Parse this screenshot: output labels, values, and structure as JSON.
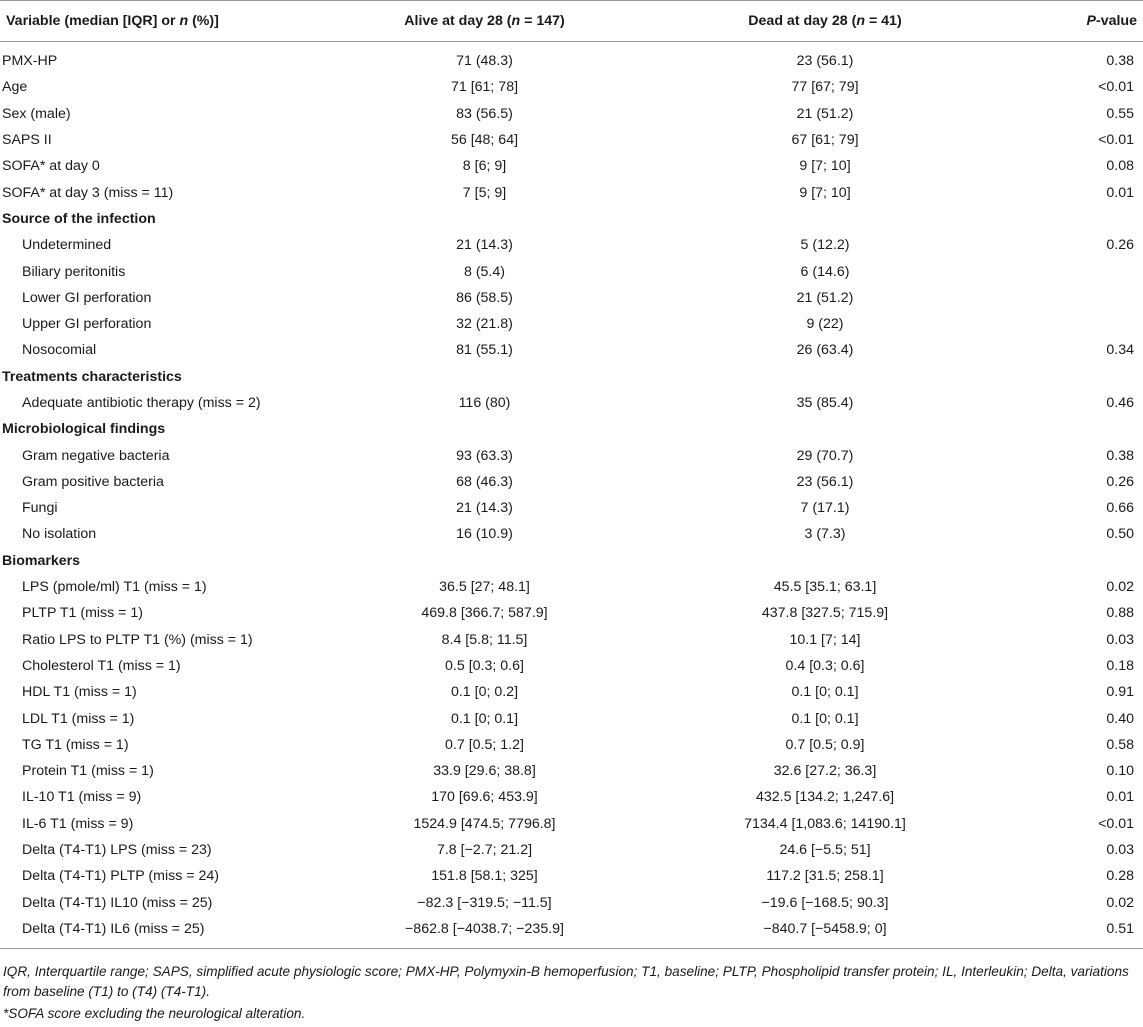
{
  "header": {
    "variable_prefix": "Variable (median [IQR] or ",
    "variable_n": "n",
    "variable_suffix": " (%)]",
    "alive_prefix": "Alive at day 28 (",
    "alive_n": "n",
    "alive_suffix": " = 147)",
    "dead_prefix": "Dead at day 28 (",
    "dead_n": "n",
    "dead_suffix": " = 41)",
    "p_prefix": "P",
    "p_suffix": "-value"
  },
  "rows": [
    {
      "label": "PMX-HP",
      "alive": "71 (48.3)",
      "dead": "23 (56.1)",
      "p": "0.38"
    },
    {
      "label": "Age",
      "alive": "71 [61; 78]",
      "dead": "77 [67; 79]",
      "p": "<0.01"
    },
    {
      "label": "Sex (male)",
      "alive": "83 (56.5)",
      "dead": "21 (51.2)",
      "p": "0.55"
    },
    {
      "label": "SAPS II",
      "alive": "56 [48; 64]",
      "dead": "67 [61; 79]",
      "p": "<0.01"
    },
    {
      "label": "SOFA* at day 0",
      "alive": "8 [6; 9]",
      "dead": "9 [7; 10]",
      "p": "0.08"
    },
    {
      "label": "SOFA* at day 3 (miss = 11)",
      "alive": "7 [5; 9]",
      "dead": "9 [7; 10]",
      "p": "0.01"
    },
    {
      "label": "Source of the infection",
      "alive": "",
      "dead": "",
      "p": ""
    },
    {
      "label": "Undetermined",
      "alive": "21 (14.3)",
      "dead": "5 (12.2)",
      "p": "0.26"
    },
    {
      "label": "Biliary peritonitis",
      "alive": "8 (5.4)",
      "dead": "6 (14.6)",
      "p": ""
    },
    {
      "label": "Lower GI perforation",
      "alive": "86 (58.5)",
      "dead": "21 (51.2)",
      "p": ""
    },
    {
      "label": "Upper GI perforation",
      "alive": "32 (21.8)",
      "dead": "9 (22)",
      "p": ""
    },
    {
      "label": "Nosocomial",
      "alive": "81 (55.1)",
      "dead": "26 (63.4)",
      "p": "0.34"
    },
    {
      "label": "Treatments characteristics",
      "alive": "",
      "dead": "",
      "p": ""
    },
    {
      "label": "Adequate antibiotic therapy (miss = 2)",
      "alive": "116 (80)",
      "dead": "35 (85.4)",
      "p": "0.46"
    },
    {
      "label": "Microbiological findings",
      "alive": "",
      "dead": "",
      "p": ""
    },
    {
      "label": "Gram negative bacteria",
      "alive": "93 (63.3)",
      "dead": "29 (70.7)",
      "p": "0.38"
    },
    {
      "label": "Gram positive bacteria",
      "alive": "68 (46.3)",
      "dead": "23 (56.1)",
      "p": "0.26"
    },
    {
      "label": "Fungi",
      "alive": "21 (14.3)",
      "dead": "7 (17.1)",
      "p": "0.66"
    },
    {
      "label": "No isolation",
      "alive": "16 (10.9)",
      "dead": "3 (7.3)",
      "p": "0.50"
    },
    {
      "label": "Biomarkers",
      "alive": "",
      "dead": "",
      "p": ""
    },
    {
      "label": "LPS (pmole/ml) T1 (miss = 1)",
      "alive": "36.5 [27; 48.1]",
      "dead": "45.5 [35.1; 63.1]",
      "p": "0.02"
    },
    {
      "label": "PLTP T1 (miss = 1)",
      "alive": "469.8 [366.7; 587.9]",
      "dead": "437.8 [327.5; 715.9]",
      "p": "0.88"
    },
    {
      "label": "Ratio LPS to PLTP T1 (%) (miss = 1)",
      "alive": "8.4 [5.8; 11.5]",
      "dead": "10.1 [7; 14]",
      "p": "0.03"
    },
    {
      "label": "Cholesterol T1 (miss = 1)",
      "alive": "0.5 [0.3; 0.6]",
      "dead": "0.4 [0.3; 0.6]",
      "p": "0.18"
    },
    {
      "label": "HDL T1 (miss = 1)",
      "alive": "0.1 [0; 0.2]",
      "dead": "0.1 [0; 0.1]",
      "p": "0.91"
    },
    {
      "label": "LDL T1 (miss = 1)",
      "alive": "0.1 [0; 0.1]",
      "dead": "0.1 [0; 0.1]",
      "p": "0.40"
    },
    {
      "label": "TG T1 (miss = 1)",
      "alive": "0.7 [0.5; 1.2]",
      "dead": "0.7 [0.5; 0.9]",
      "p": "0.58"
    },
    {
      "label": "Protein T1 (miss = 1)",
      "alive": "33.9 [29.6; 38.8]",
      "dead": "32.6 [27.2; 36.3]",
      "p": "0.10"
    },
    {
      "label": "IL-10 T1 (miss = 9)",
      "alive": "170 [69.6; 453.9]",
      "dead": "432.5 [134.2; 1,247.6]",
      "p": "0.01"
    },
    {
      "label": "IL-6 T1 (miss = 9)",
      "alive": "1524.9 [474.5; 7796.8]",
      "dead": "7134.4 [1,083.6; 14190.1]",
      "p": "<0.01"
    },
    {
      "label": "Delta (T4-T1) LPS (miss = 23)",
      "alive": "7.8 [−2.7; 21.2]",
      "dead": "24.6 [−5.5; 51]",
      "p": "0.03"
    },
    {
      "label": "Delta (T4-T1) PLTP (miss = 24)",
      "alive": "151.8 [58.1; 325]",
      "dead": "117.2 [31.5; 258.1]",
      "p": "0.28"
    },
    {
      "label": "Delta (T4-T1) IL10 (miss = 25)",
      "alive": "−82.3 [−319.5; −11.5]",
      "dead": "−19.6 [−168.5; 90.3]",
      "p": "0.02"
    },
    {
      "label": "Delta (T4-T1) IL6 (miss = 25)",
      "alive": "−862.8 [−4038.7; −235.9]",
      "dead": "−840.7 [−5458.9; 0]",
      "p": "0.51"
    }
  ],
  "footnotes": {
    "abbreviations": "IQR, Interquartile range; SAPS, simplified acute physiologic score; PMX-HP, Polymyxin-B hemoperfusion; T1, baseline; PLTP, Phospholipid transfer protein; IL, Interleukin; Delta, variations from baseline (T1) to (T4) (T4-T1).",
    "sofa": "*SOFA score excluding the neurological alteration."
  }
}
